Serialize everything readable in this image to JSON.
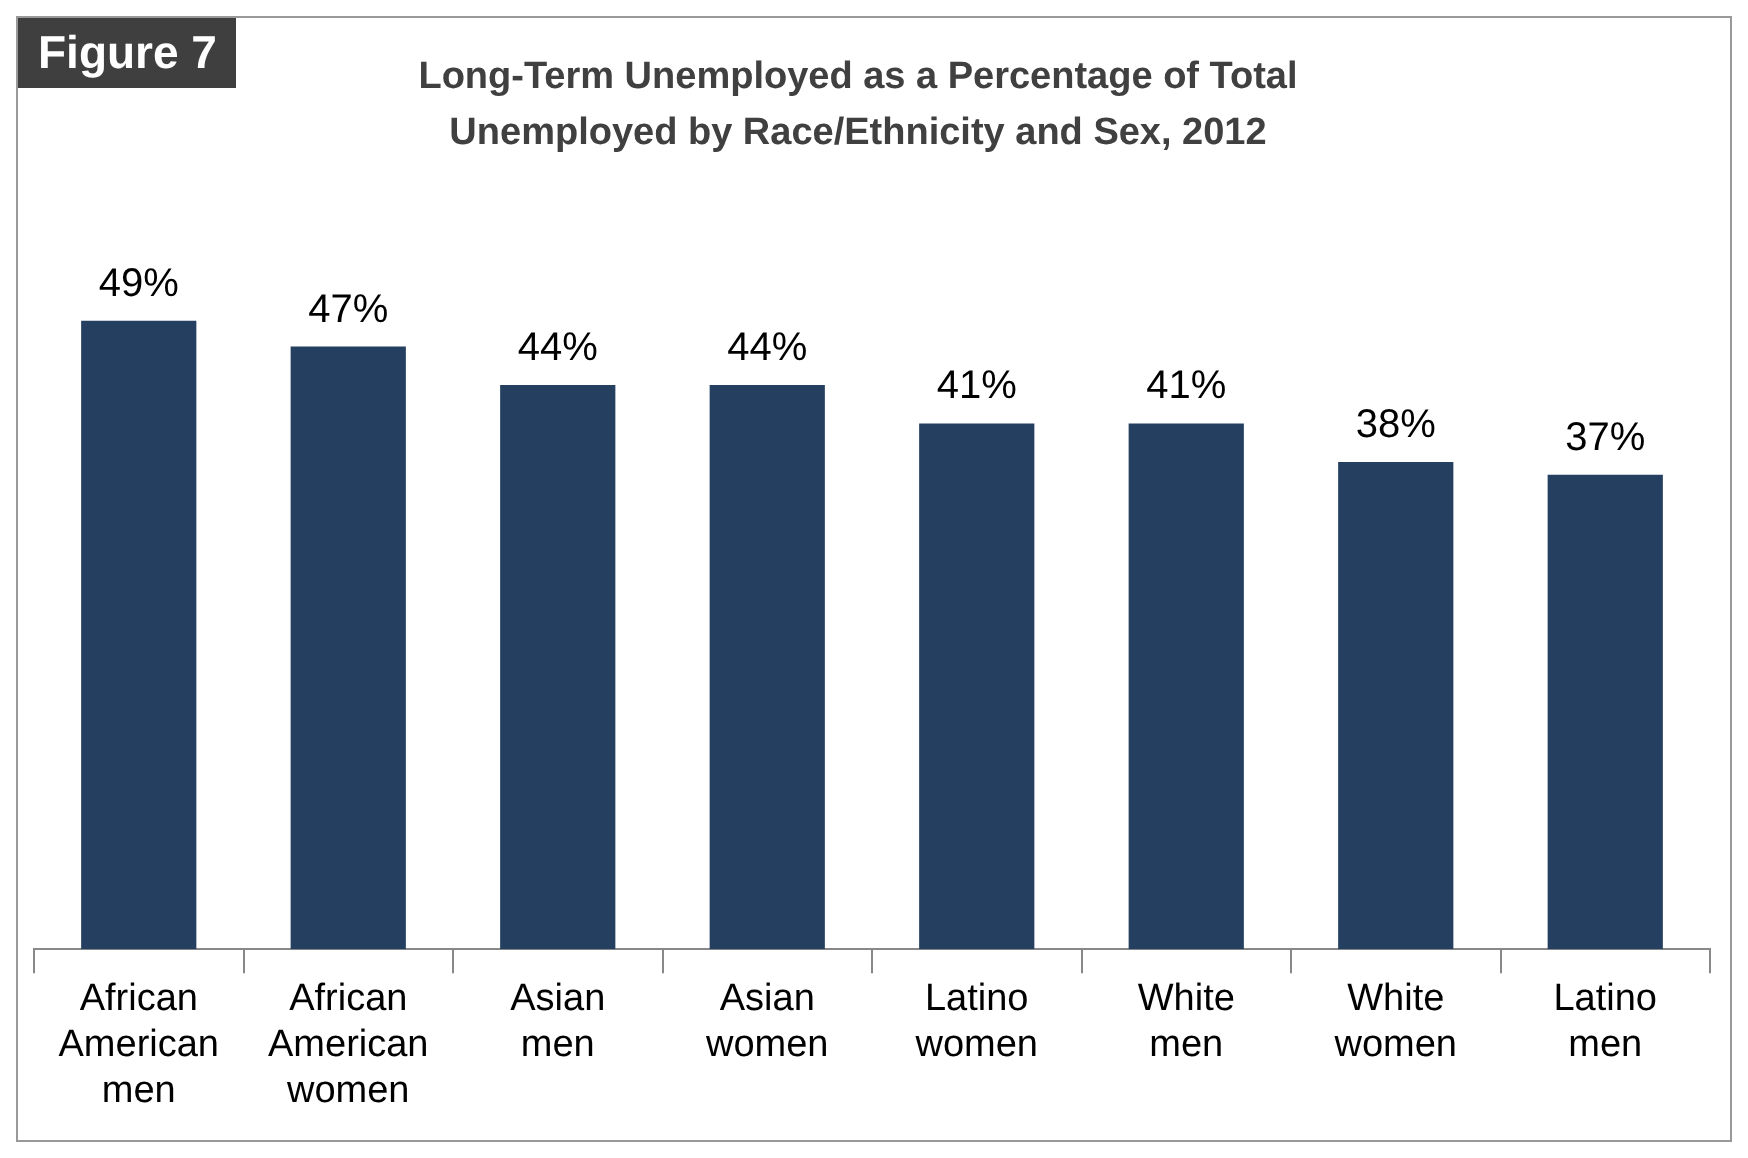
{
  "chart_data": {
    "type": "bar",
    "title": "Long-Term Unemployed as a Percentage of Total Unemployed by Race/Ethnicity and Sex, 2012",
    "annotations": [
      "Figure 7"
    ],
    "categories": [
      "African American men",
      "African American women",
      "Asian men",
      "Asian women",
      "Latino women",
      "White men",
      "White women",
      "Latino men"
    ],
    "values": [
      49,
      47,
      44,
      44,
      41,
      41,
      38,
      37
    ],
    "value_labels": [
      "49%",
      "47%",
      "44%",
      "44%",
      "41%",
      "41%",
      "38%",
      "37%"
    ],
    "color": "#243f60",
    "legend": false
  }
}
